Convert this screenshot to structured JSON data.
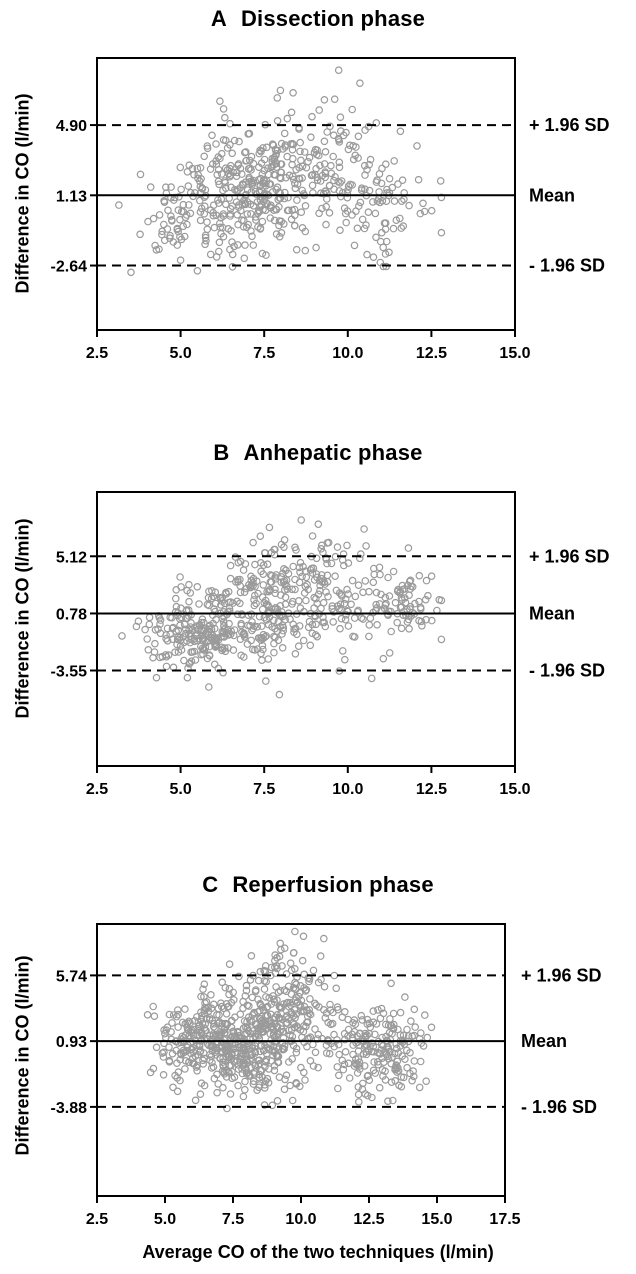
{
  "chart_data": [
    {
      "type": "scatter",
      "panel_letter": "A",
      "title": "Dissection phase",
      "ylabel": "Difference in CO (l/min)",
      "xlabel": "",
      "xlim": [
        2.5,
        15.0
      ],
      "xticks": [
        "2.5",
        "5.0",
        "7.5",
        "10.0",
        "12.5",
        "15.0"
      ],
      "ylim": [
        -6.1,
        8.5
      ],
      "yticks": [
        "4.90",
        "1.13",
        "-2.64"
      ],
      "reference_lines": [
        {
          "value": 4.9,
          "label": "+ 1.96  SD",
          "style": "dashed"
        },
        {
          "value": 1.13,
          "label": "Mean",
          "style": "solid"
        },
        {
          "value": -2.64,
          "label": "- 1.96  SD",
          "style": "dashed"
        }
      ],
      "grid": false
    },
    {
      "type": "scatter",
      "panel_letter": "B",
      "title": "Anhepatic phase",
      "ylabel": "Difference in CO (l/min)",
      "xlabel": "",
      "xlim": [
        2.5,
        15.0
      ],
      "xticks": [
        "2.5",
        "5.0",
        "7.5",
        "10.0",
        "12.5",
        "15.0"
      ],
      "ylim": [
        -10.8,
        10.0
      ],
      "yticks": [
        "5.12",
        "0.78",
        "-3.55"
      ],
      "reference_lines": [
        {
          "value": 5.12,
          "label": "+ 1.96  SD",
          "style": "dashed"
        },
        {
          "value": 0.78,
          "label": "Mean",
          "style": "solid"
        },
        {
          "value": -3.55,
          "label": "- 1.96  SD",
          "style": "dashed"
        }
      ],
      "grid": false
    },
    {
      "type": "scatter",
      "panel_letter": "C",
      "title": "Reperfusion phase",
      "ylabel": "Difference in CO (l/min)",
      "xlabel": "Average CO of the two techniques (l/min)",
      "xlim": [
        2.5,
        17.5
      ],
      "xticks": [
        "2.5",
        "5.0",
        "7.5",
        "10.0",
        "12.5",
        "15.0",
        "17.5"
      ],
      "ylim": [
        -10.4,
        9.5
      ],
      "yticks": [
        "5.74",
        "0.93",
        "-3.88"
      ],
      "reference_lines": [
        {
          "value": 5.74,
          "label": "+ 1.96  SD",
          "style": "dashed"
        },
        {
          "value": 0.93,
          "label": "Mean",
          "style": "solid"
        },
        {
          "value": -3.88,
          "label": "- 1.96  SD",
          "style": "dashed"
        }
      ],
      "grid": false
    }
  ],
  "colors": {
    "marker": "#9a9a9a",
    "axis": "#000000"
  }
}
